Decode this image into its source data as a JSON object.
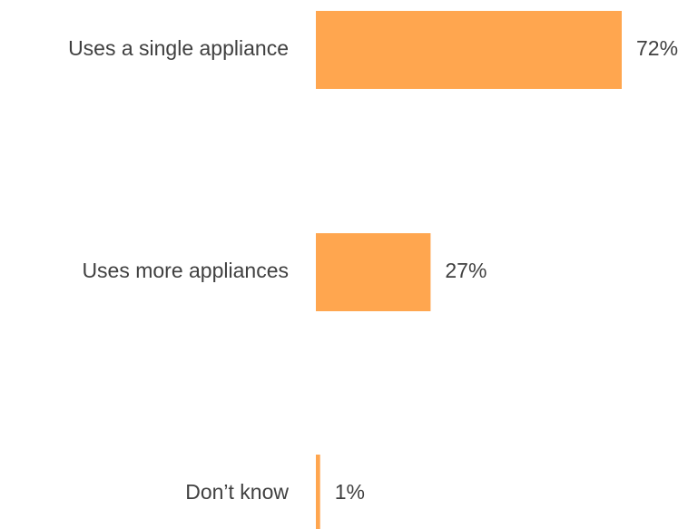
{
  "chart_data": {
    "type": "bar",
    "orientation": "horizontal",
    "categories": [
      "Uses a single appliance",
      "Uses more appliances",
      "Don’t know"
    ],
    "values": [
      72,
      27,
      1
    ],
    "value_labels": [
      "72%",
      "27%",
      "1%"
    ],
    "unit": "%",
    "title": "",
    "xlabel": "",
    "ylabel": "",
    "xlim": [
      0,
      72
    ],
    "grid": false,
    "legend": "none",
    "bar_color": "#FFA64F",
    "text_color": "#404040"
  }
}
